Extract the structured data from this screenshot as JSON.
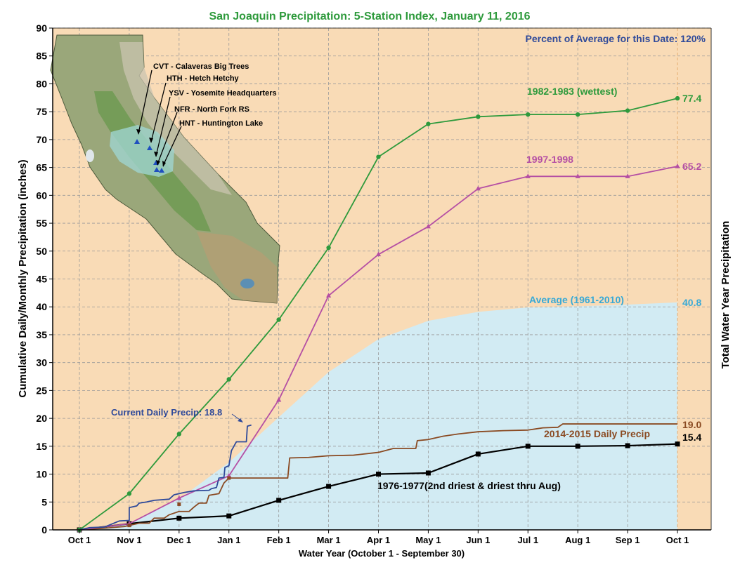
{
  "chart_data": {
    "type": "line",
    "title": "San Joaquin Precipitation: 5-Station Index, January 11, 2016",
    "subtitle": "Percent of Average for this Date: 120%",
    "xlabel": "Water Year (October 1 - September 30)",
    "ylabel": "Cumulative Daily/Monthly Precipitation (inches)",
    "ylabel_right": "Total Water Year Precipitation",
    "ylim": [
      0,
      90
    ],
    "yticks": [
      "0",
      "5",
      "10",
      "15",
      "20",
      "25",
      "30",
      "35",
      "40",
      "45",
      "50",
      "55",
      "60",
      "65",
      "70",
      "75",
      "80",
      "85",
      "90"
    ],
    "categories": [
      "Oct 1",
      "Nov 1",
      "Dec 1",
      "Jan 1",
      "Feb 1",
      "Mar 1",
      "Apr 1",
      "May 1",
      "Jun 1",
      "Jul 1",
      "Aug 1",
      "Sep 1",
      "Oct 1"
    ],
    "grid": true,
    "colors": {
      "background": "#f9dbb6",
      "average": "#d2ebf3",
      "wettest": "#2e9a3c",
      "y1997": "#b54fa4",
      "y2015": "#8a4a22",
      "y1977": "#000000",
      "current": "#2f4a9a",
      "average_label": "#38a9d6"
    },
    "series": [
      {
        "name": "1982-1983 (wettest)",
        "key": "wettest",
        "values": [
          0,
          6.5,
          17.2,
          27,
          37.7,
          50.6,
          66.9,
          72.8,
          74.1,
          74.5,
          74.5,
          75.2,
          77.4
        ]
      },
      {
        "name": "1997-1998",
        "key": "y1997",
        "values": [
          0,
          1.1,
          5.7,
          9.7,
          23.3,
          42,
          49.4,
          54.4,
          61.2,
          63.4,
          63.4,
          63.4,
          65.2
        ]
      },
      {
        "name": "Average (1961-2010)",
        "key": "average",
        "values": [
          0,
          1.2,
          5.5,
          12.1,
          20.2,
          28.3,
          34.2,
          37.5,
          39.1,
          39.9,
          40.1,
          40.4,
          40.8
        ]
      },
      {
        "name": "2014-2015 Daily Precip",
        "key": "y2015",
        "points": [
          [
            0,
            0
          ],
          [
            0.5,
            0.3
          ],
          [
            0.9,
            0.6
          ],
          [
            1,
            0.8
          ],
          [
            1.2,
            1.2
          ],
          [
            1.4,
            1.2
          ],
          [
            1.5,
            2.1
          ],
          [
            1.7,
            2.1
          ],
          [
            1.8,
            2.7
          ],
          [
            2,
            3.3
          ],
          [
            2.2,
            3.3
          ],
          [
            2.3,
            4.1
          ],
          [
            2.4,
            4.8
          ],
          [
            2.55,
            4.8
          ],
          [
            2.6,
            6.2
          ],
          [
            2.8,
            6.5
          ],
          [
            2.9,
            8.4
          ],
          [
            3,
            9.3
          ],
          [
            4,
            9.3
          ],
          [
            4.18,
            9.3
          ],
          [
            4.22,
            12.9
          ],
          [
            4.6,
            13
          ],
          [
            5,
            13.3
          ],
          [
            5.5,
            13.4
          ],
          [
            6,
            13.9
          ],
          [
            6.3,
            14.6
          ],
          [
            6.75,
            14.6
          ],
          [
            6.78,
            16
          ],
          [
            7,
            16.2
          ],
          [
            7.3,
            16.8
          ],
          [
            7.6,
            17.2
          ],
          [
            8,
            17.6
          ],
          [
            8.5,
            17.8
          ],
          [
            9,
            17.9
          ],
          [
            9.3,
            18.3
          ],
          [
            9.6,
            18.4
          ],
          [
            9.7,
            19
          ],
          [
            10,
            19
          ],
          [
            11,
            19
          ],
          [
            12,
            19
          ]
        ]
      },
      {
        "name": "1976-1977(2nd driest & driest thru Aug)",
        "key": "y1977",
        "values": [
          0,
          1.1,
          2.1,
          2.5,
          5.3,
          7.8,
          10,
          10.2,
          13.6,
          15,
          15,
          15.1,
          15.4
        ]
      },
      {
        "name": "Current Daily Precip: 18.8",
        "key": "current",
        "points": [
          [
            0,
            0
          ],
          [
            0.2,
            0.4
          ],
          [
            0.5,
            0.5
          ],
          [
            0.8,
            1.6
          ],
          [
            1,
            1.7
          ],
          [
            1,
            4
          ],
          [
            1.15,
            4.3
          ],
          [
            1.2,
            4.8
          ],
          [
            1.35,
            5
          ],
          [
            1.5,
            5.3
          ],
          [
            1.8,
            5.5
          ],
          [
            1.9,
            6.3
          ],
          [
            2,
            6.5
          ],
          [
            2.1,
            6.7
          ],
          [
            2.3,
            7
          ],
          [
            2.6,
            7.1
          ],
          [
            2.65,
            7.4
          ],
          [
            2.75,
            7.6
          ],
          [
            2.8,
            9.3
          ],
          [
            2.9,
            9.4
          ],
          [
            2.92,
            11.2
          ],
          [
            3,
            11.5
          ],
          [
            3.05,
            14.2
          ],
          [
            3.15,
            15.8
          ],
          [
            3.35,
            15.8
          ],
          [
            3.37,
            18.6
          ],
          [
            3.45,
            18.8
          ]
        ]
      }
    ],
    "labels": {
      "wettest": "1982-1983 (wettest)",
      "y1997": "1997-1998",
      "average": "Average (1961-2010)",
      "y2015": "2014-2015 Daily Precip",
      "y1977": "1976-1977(2nd driest & driest thru Aug)",
      "current": "Current Daily Precip: 18.8"
    },
    "end_values": {
      "wettest": "77.4",
      "y1997": "65.2",
      "average": "40.8",
      "y2015": "19.0",
      "y1977": "15.4"
    }
  },
  "map": {
    "stations": [
      "CVT - Calaveras Big Trees",
      "HTH - Hetch Hetchy",
      "YSV - Yosemite Headquarters",
      "NFR - North Fork RS",
      "HNT - Huntington Lake"
    ]
  }
}
